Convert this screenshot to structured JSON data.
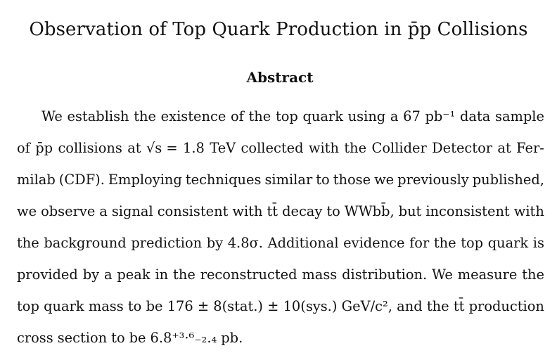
{
  "title": "Observation of Top Quark Production in p̄p Collisions",
  "abstract": {
    "heading": "Abstract",
    "lines": [
      [
        "We",
        "establish",
        "the",
        "existence",
        "of",
        "the",
        "top",
        "quark",
        "using",
        "a",
        "67",
        "pb⁻¹",
        "data",
        "sample"
      ],
      [
        "of",
        "p̄p",
        "collisions",
        "at",
        "√s =",
        "1.8",
        "TeV",
        "collected",
        "with",
        "the",
        "Collider",
        "Detector",
        "at",
        "Fer-"
      ],
      [
        "milab",
        "(CDF).",
        "Employing",
        "techniques",
        "similar",
        "to",
        "those",
        "we",
        "previously",
        "published,"
      ],
      [
        "we",
        "observe",
        "a",
        "signal",
        "consistent",
        "with",
        "tt̄",
        "decay",
        "to",
        "WWbb̄,",
        "but",
        "inconsistent",
        "with"
      ],
      [
        "the",
        "background",
        "prediction",
        "by",
        "4.8σ.",
        "Additional",
        "evidence",
        "for",
        "the",
        "top",
        "quark",
        "is"
      ],
      [
        "provided",
        "by",
        "a",
        "peak",
        "in",
        "the",
        "reconstructed",
        "mass",
        "distribution.",
        "We",
        "measure",
        "the"
      ],
      [
        "top",
        "quark",
        "mass",
        "to",
        "be",
        "176 ± 8(stat.) ± 10(sys.)",
        "GeV/c²,",
        "and",
        "the",
        "tt̄",
        "production"
      ],
      [
        "cross",
        "section",
        "to",
        "be",
        "6.8⁺³·⁶₋₂.₄",
        "pb."
      ]
    ]
  }
}
